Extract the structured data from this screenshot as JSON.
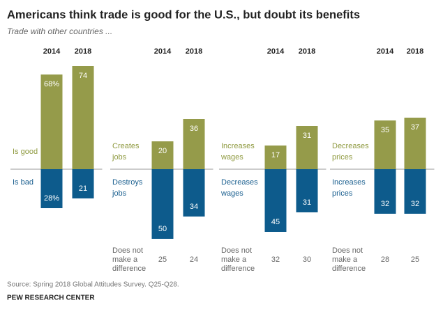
{
  "header": {
    "title": "Americans think trade is good for the U.S., but doubt its benefits",
    "subtitle": "Trade with other countries ...",
    "source": "Source: Spring 2018 Global Attitudes Survey. Q25-Q28.",
    "publisher": "PEW RESEARCH CENTER"
  },
  "chart_data": [
    {
      "type": "diverging-bar",
      "categories": [
        "2014",
        "2018"
      ],
      "series": [
        {
          "name": "Is good",
          "color": "#959b4a",
          "values": [
            68,
            74
          ],
          "value_labels": [
            "68%",
            "74"
          ]
        },
        {
          "name": "Is bad",
          "color": "#0d5b8c",
          "values": [
            28,
            21
          ],
          "value_labels": [
            "28%",
            "21"
          ]
        }
      ]
    },
    {
      "type": "diverging-bar",
      "categories": [
        "2014",
        "2018"
      ],
      "series": [
        {
          "name": "Creates jobs",
          "color": "#959b4a",
          "values": [
            20,
            36
          ]
        },
        {
          "name": "Destroys jobs",
          "color": "#0d5b8c",
          "values": [
            50,
            34
          ]
        }
      ],
      "no_difference": {
        "label": "Does not make a difference",
        "values": [
          25,
          24
        ]
      }
    },
    {
      "type": "diverging-bar",
      "categories": [
        "2014",
        "2018"
      ],
      "series": [
        {
          "name": "Increases wages",
          "color": "#959b4a",
          "values": [
            17,
            31
          ]
        },
        {
          "name": "Decreases wages",
          "color": "#0d5b8c",
          "values": [
            45,
            31
          ]
        }
      ],
      "no_difference": {
        "label": "Does not make a difference",
        "values": [
          32,
          30
        ]
      }
    },
    {
      "type": "diverging-bar",
      "categories": [
        "2014",
        "2018"
      ],
      "series": [
        {
          "name": "Decreases prices",
          "color": "#959b4a",
          "values": [
            35,
            37
          ]
        },
        {
          "name": "Increases prices",
          "color": "#0d5b8c",
          "values": [
            32,
            32
          ]
        }
      ],
      "no_difference": {
        "label": "Does not make a difference",
        "values": [
          28,
          25
        ]
      }
    }
  ]
}
